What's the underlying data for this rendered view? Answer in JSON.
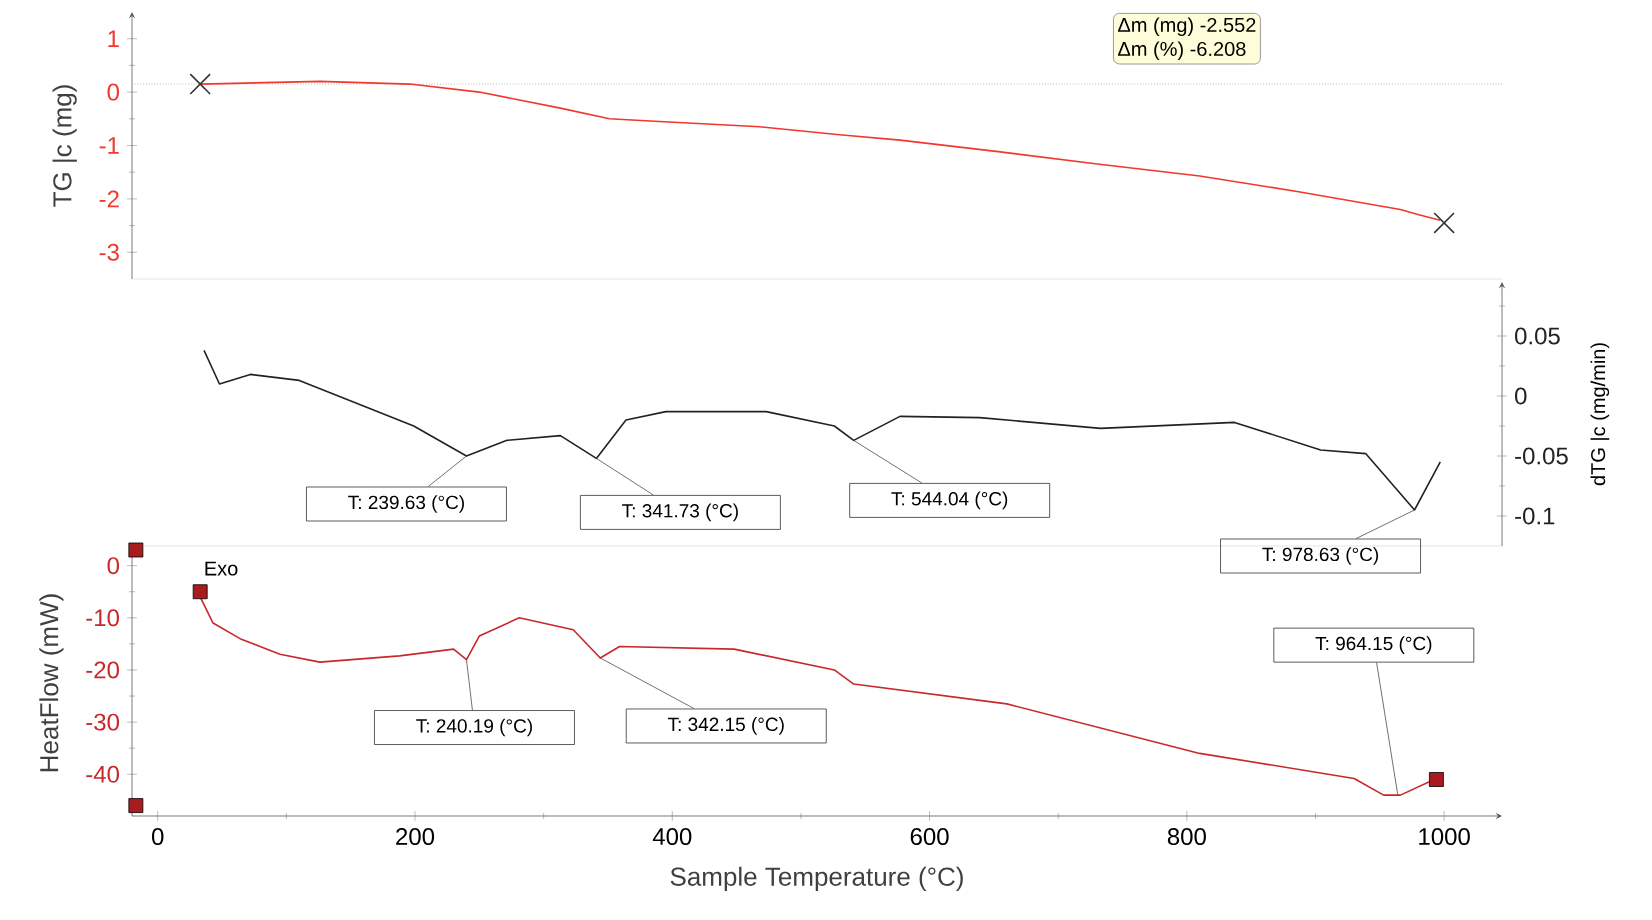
{
  "chart_data": [
    {
      "type": "line",
      "ylabel": "TG |c (mg)",
      "xlim": [
        -20,
        1045
      ],
      "ylim": [
        -3.5,
        1.5
      ],
      "yticks": [
        -3,
        {
          "value": -2.5,
          "label": null
        },
        -2,
        {
          "value": -1.5,
          "label": null
        },
        -1,
        {
          "value": -0.5,
          "label": null
        },
        0,
        {
          "value": 0.5,
          "label": null
        },
        1
      ],
      "tick_labels": "y",
      "ref_lines": [
        {
          "axis": "y",
          "value": 0.15,
          "color": "#999999",
          "line_style": "dotted"
        }
      ],
      "annotations": [
        "Δm (mg) -2.552",
        "Δm (%) -6.208"
      ],
      "series": [
        {
          "color": "#f0382c",
          "x": [
            33,
            126,
            196,
            250,
            313,
            351,
            390,
            468,
            530,
            577,
            655,
            732,
            810,
            888,
            966,
            981,
            997
          ],
          "values": [
            0.15,
            0.2,
            0.15,
            0.0,
            -0.3,
            -0.5,
            -0.55,
            -0.65,
            -0.8,
            -0.9,
            -1.12,
            -1.35,
            -1.57,
            -1.87,
            -2.2,
            -2.3,
            -2.4
          ]
        },
        {
          "type": "scatter",
          "marker": "cross",
          "color": "#333333",
          "x": [
            33,
            1000
          ],
          "values": [
            0.15,
            -2.45
          ]
        }
      ]
    },
    {
      "type": "line",
      "ylabel": "dTG |c (mg/min)",
      "xlim": [
        -20,
        1045
      ],
      "ylim": [
        -0.125,
        0.095
      ],
      "yticks": [
        -0.1,
        {
          "value": -0.075,
          "label": null
        },
        -0.05,
        {
          "value": -0.025,
          "label": null
        },
        0,
        {
          "value": 0.025,
          "label": null
        },
        0.05,
        {
          "value": 0.075,
          "label": null
        }
      ],
      "tick_labels": "y",
      "annotations": [
        {
          "text": "T: 239.63 (°C)",
          "x": 240,
          "y": -0.05
        },
        {
          "text": "T: 341.73 (°C)",
          "x": 341,
          "y": -0.052
        },
        {
          "text": "T: 544.04 (°C)",
          "x": 541,
          "y": -0.037
        },
        {
          "text": "T: 978.63 (°C)",
          "x": 977,
          "y": -0.095
        }
      ],
      "series": [
        {
          "color": "#222222",
          "x": [
            36,
            48,
            72,
            110,
            157,
            199,
            240,
            271,
            313,
            341,
            364,
            395,
            473,
            526,
            541,
            577,
            639,
            733,
            837,
            904,
            939,
            977,
            997
          ],
          "values": [
            0.038,
            0.01,
            0.018,
            0.013,
            -0.007,
            -0.025,
            -0.05,
            -0.037,
            -0.033,
            -0.052,
            -0.02,
            -0.013,
            -0.013,
            -0.025,
            -0.037,
            -0.017,
            -0.018,
            -0.027,
            -0.022,
            -0.045,
            -0.048,
            -0.095,
            -0.055
          ]
        }
      ]
    },
    {
      "type": "line",
      "xlabel": "Sample Temperature (°C)",
      "ylabel": "HeatFlow  (mW)",
      "xlim": [
        -20,
        1045
      ],
      "ylim": [
        -48,
        3
      ],
      "xticks": [
        0,
        {
          "value": 100,
          "label": null
        },
        200,
        {
          "value": 300,
          "label": null
        },
        400,
        {
          "value": 500,
          "label": null
        },
        600,
        {
          "value": 700,
          "label": null
        },
        800,
        {
          "value": 900,
          "label": null
        },
        1000
      ],
      "yticks": [
        -40,
        {
          "value": -35,
          "label": null
        },
        -30,
        {
          "value": -25,
          "label": null
        },
        -20,
        {
          "value": -15,
          "label": null
        },
        -10,
        {
          "value": -5,
          "label": null
        },
        0
      ],
      "annotations": [
        "Exo",
        {
          "text": "T: 240.19 (°C)",
          "x": 240,
          "y": -18
        },
        {
          "text": "T: 342.15 (°C)",
          "x": 344,
          "y": -17.7
        },
        {
          "text": "T: 964.15 (°C)",
          "x": 964,
          "y": -44
        }
      ],
      "series": [
        {
          "color": "#c8282c",
          "x": [
            31,
            43,
            64,
            95,
            126,
            188,
            230,
            240,
            250,
            281,
            323,
            344,
            359,
            448,
            526,
            541,
            660,
            810,
            930,
            953,
            966,
            994
          ],
          "values": [
            -5,
            -11,
            -14,
            -17,
            -18.5,
            -17.3,
            -16,
            -18,
            -13.5,
            -10,
            -12.3,
            -17.7,
            -15.5,
            -16,
            -20,
            -22.7,
            -26.5,
            -36,
            -40.8,
            -44,
            -44,
            -40.8
          ]
        },
        {
          "type": "scatter",
          "marker": "square",
          "color": "#a81c20",
          "x": [
            -17,
            -17,
            33,
            994
          ],
          "values": [
            3,
            -46,
            -5,
            -41
          ]
        }
      ]
    }
  ]
}
